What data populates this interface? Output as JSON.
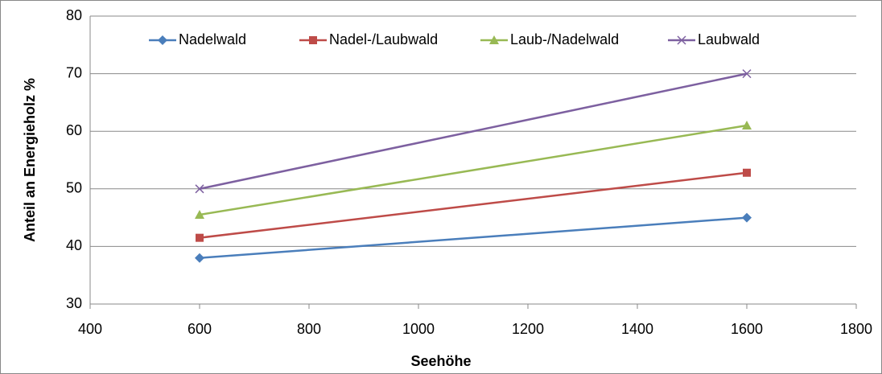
{
  "chart_data": {
    "type": "line",
    "x_label": "Seehöhe",
    "y_label": "Anteil an Energieholz %",
    "x": [
      600,
      1600
    ],
    "series": [
      {
        "name": "Nadelwald",
        "color": "#4a7ebb",
        "marker": "diamond",
        "values": [
          38,
          45
        ]
      },
      {
        "name": "Nadel-/Laubwald",
        "color": "#be4b48",
        "marker": "square",
        "values": [
          41.5,
          52.8
        ]
      },
      {
        "name": "Laub-/Nadelwald",
        "color": "#98b954",
        "marker": "triangle",
        "values": [
          45.5,
          61
        ]
      },
      {
        "name": "Laubwald",
        "color": "#7d60a0",
        "marker": "x",
        "values": [
          50,
          70
        ]
      }
    ],
    "xlim": [
      400,
      1800
    ],
    "xticks": [
      400,
      600,
      800,
      1000,
      1200,
      1400,
      1600,
      1800
    ],
    "ylim": [
      30,
      80
    ],
    "yticks": [
      30,
      40,
      50,
      60,
      70,
      80
    ],
    "grid": true,
    "legend": "top"
  }
}
